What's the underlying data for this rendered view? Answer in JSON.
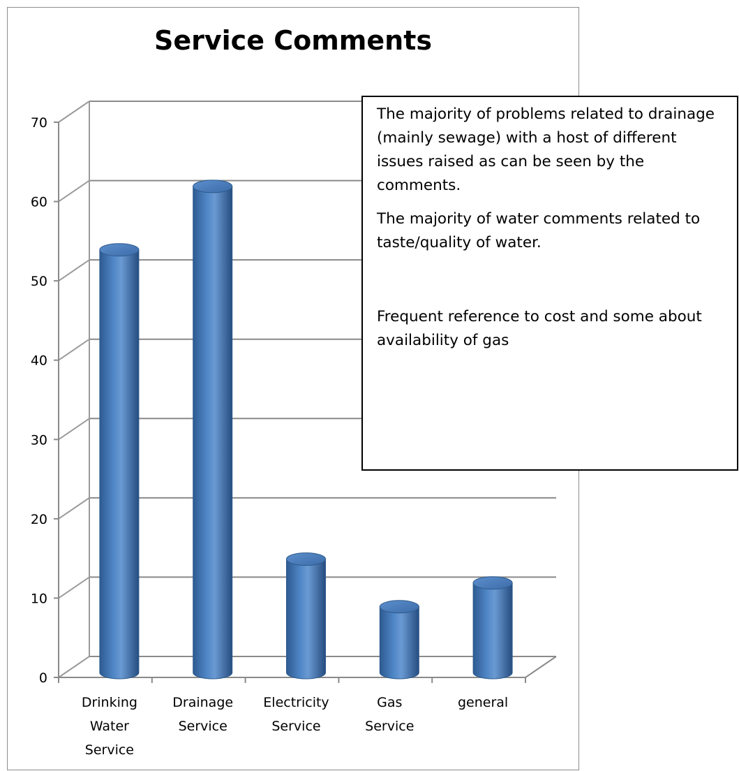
{
  "chart_data": {
    "type": "bar",
    "title": "Service Comments",
    "categories": [
      [
        "Drinking",
        "Water",
        "Service"
      ],
      [
        "Drainage",
        "Service"
      ],
      [
        "Electricity",
        "Service"
      ],
      [
        "Gas",
        "Service"
      ],
      [
        "general"
      ]
    ],
    "values": [
      54,
      62,
      15,
      9,
      12
    ],
    "ylim": [
      0,
      70
    ],
    "yticks": [
      0,
      10,
      20,
      30,
      40,
      50,
      60,
      70
    ],
    "grid": true,
    "style": "3d-cylinder",
    "bar_color": "#4f81bd",
    "bar_edge_color": "#2d5a8c"
  },
  "annotation": {
    "paragraphs": [
      "The majority of problems related to drainage (mainly sewage) with a host of different issues raised as can be seen by the comments.",
      "The majority of water comments related to taste/quality of water.",
      "Frequent reference to cost and some about availability of gas"
    ]
  }
}
